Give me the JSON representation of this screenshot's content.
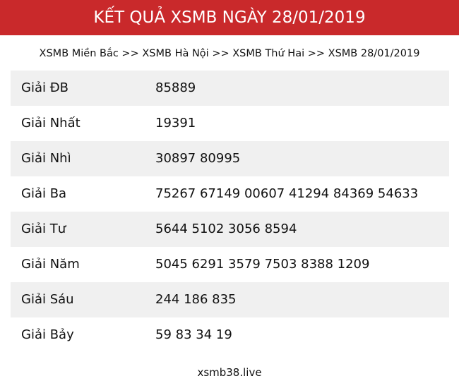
{
  "header": {
    "title": "KẾT QUẢ XSMB NGÀY 28/01/2019"
  },
  "breadcrumb": {
    "items": [
      "XSMB Miền Bắc",
      "XSMB Hà Nội",
      "XSMB Thứ Hai",
      "XSMB 28/01/2019"
    ],
    "separator": " >> "
  },
  "results": [
    {
      "label": "Giải ĐB",
      "value": "85889"
    },
    {
      "label": "Giải Nhất",
      "value": "19391"
    },
    {
      "label": "Giải Nhì",
      "value": "30897 80995"
    },
    {
      "label": "Giải Ba",
      "value": "75267 67149 00607 41294 84369 54633"
    },
    {
      "label": "Giải Tư",
      "value": "5644 5102 3056 8594"
    },
    {
      "label": "Giải Năm",
      "value": "5045 6291 3579 7503 8388 1209"
    },
    {
      "label": "Giải Sáu",
      "value": "244 186 835"
    },
    {
      "label": "Giải Bảy",
      "value": "59 83 34 19"
    }
  ],
  "footer": {
    "site": "xsmb38.live"
  },
  "colors": {
    "header_bg": "#c9292b",
    "row_alt_bg": "#f0f0f0"
  }
}
